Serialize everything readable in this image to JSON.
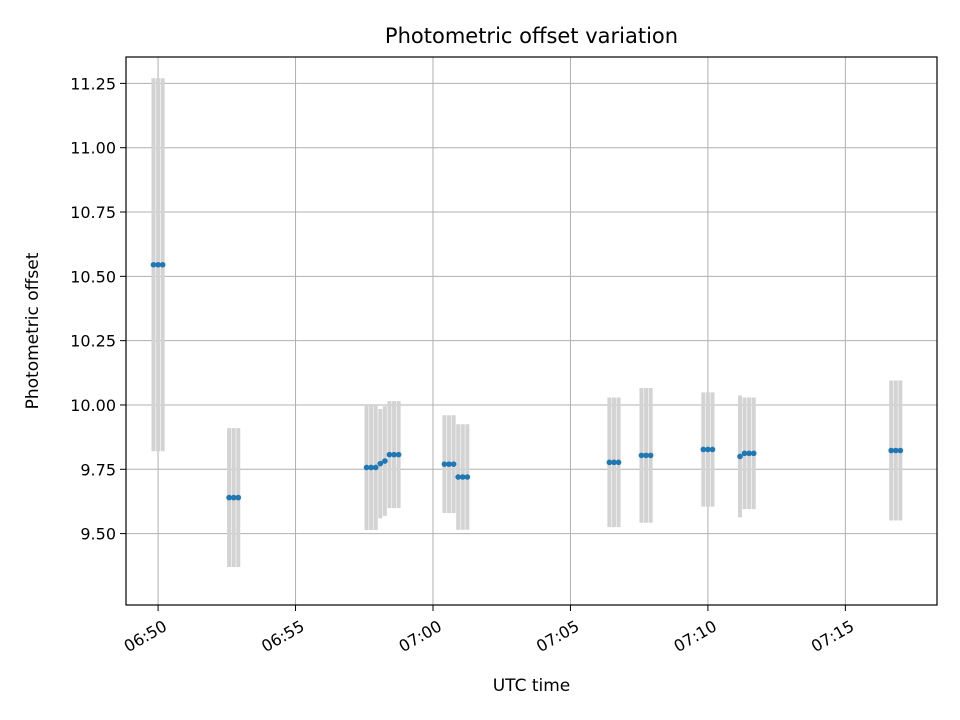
{
  "chart_data": {
    "type": "scatter",
    "title": "Photometric offset variation",
    "xlabel": "UTC time",
    "ylabel": "Photometric offset",
    "xlim": [
      "06:48:50",
      "07:18:20"
    ],
    "ylim": [
      9.2225,
      11.3525
    ],
    "x_ticks": [
      "06:50",
      "06:55",
      "07:00",
      "07:05",
      "07:10",
      "07:15"
    ],
    "y_ticks": [
      "9.50",
      "9.75",
      "10.00",
      "10.25",
      "10.50",
      "10.75",
      "11.00",
      "11.25"
    ],
    "grid": true,
    "point_color": "#1f77b4",
    "errorbar_color": "#d3d3d3",
    "series": [
      {
        "points": [
          {
            "t": "06:49:50",
            "y": 10.545,
            "err": 0.725
          },
          {
            "t": "06:50:00",
            "y": 10.545,
            "err": 0.725
          },
          {
            "t": "06:50:10",
            "y": 10.545,
            "err": 0.725
          },
          {
            "t": "06:52:35",
            "y": 9.64,
            "err": 0.27
          },
          {
            "t": "06:52:45",
            "y": 9.64,
            "err": 0.27
          },
          {
            "t": "06:52:55",
            "y": 9.64,
            "err": 0.27
          },
          {
            "t": "06:57:35",
            "y": 9.757,
            "err": 0.243
          },
          {
            "t": "06:57:45",
            "y": 9.757,
            "err": 0.243
          },
          {
            "t": "06:57:55",
            "y": 9.757,
            "err": 0.243
          },
          {
            "t": "06:58:05",
            "y": 9.772,
            "err": 0.213
          },
          {
            "t": "06:58:15",
            "y": 9.782,
            "err": 0.213
          },
          {
            "t": "06:58:25",
            "y": 9.807,
            "err": 0.208
          },
          {
            "t": "06:58:35",
            "y": 9.807,
            "err": 0.208
          },
          {
            "t": "06:58:45",
            "y": 9.807,
            "err": 0.208
          },
          {
            "t": "07:00:25",
            "y": 9.77,
            "err": 0.19
          },
          {
            "t": "07:00:35",
            "y": 9.77,
            "err": 0.19
          },
          {
            "t": "07:00:45",
            "y": 9.77,
            "err": 0.19
          },
          {
            "t": "07:00:55",
            "y": 9.72,
            "err": 0.205
          },
          {
            "t": "07:01:05",
            "y": 9.72,
            "err": 0.205
          },
          {
            "t": "07:01:15",
            "y": 9.72,
            "err": 0.205
          },
          {
            "t": "07:06:25",
            "y": 9.777,
            "err": 0.252
          },
          {
            "t": "07:06:35",
            "y": 9.777,
            "err": 0.252
          },
          {
            "t": "07:06:45",
            "y": 9.777,
            "err": 0.252
          },
          {
            "t": "07:07:35",
            "y": 9.804,
            "err": 0.262
          },
          {
            "t": "07:07:45",
            "y": 9.804,
            "err": 0.262
          },
          {
            "t": "07:07:55",
            "y": 9.804,
            "err": 0.262
          },
          {
            "t": "07:09:50",
            "y": 9.827,
            "err": 0.222
          },
          {
            "t": "07:10:00",
            "y": 9.827,
            "err": 0.222
          },
          {
            "t": "07:10:10",
            "y": 9.827,
            "err": 0.222
          },
          {
            "t": "07:11:10",
            "y": 9.8,
            "err": 0.237
          },
          {
            "t": "07:11:20",
            "y": 9.812,
            "err": 0.217
          },
          {
            "t": "07:11:30",
            "y": 9.812,
            "err": 0.217
          },
          {
            "t": "07:11:40",
            "y": 9.812,
            "err": 0.217
          },
          {
            "t": "07:16:40",
            "y": 9.823,
            "err": 0.272
          },
          {
            "t": "07:16:50",
            "y": 9.823,
            "err": 0.272
          },
          {
            "t": "07:17:00",
            "y": 9.823,
            "err": 0.272
          }
        ]
      }
    ]
  }
}
